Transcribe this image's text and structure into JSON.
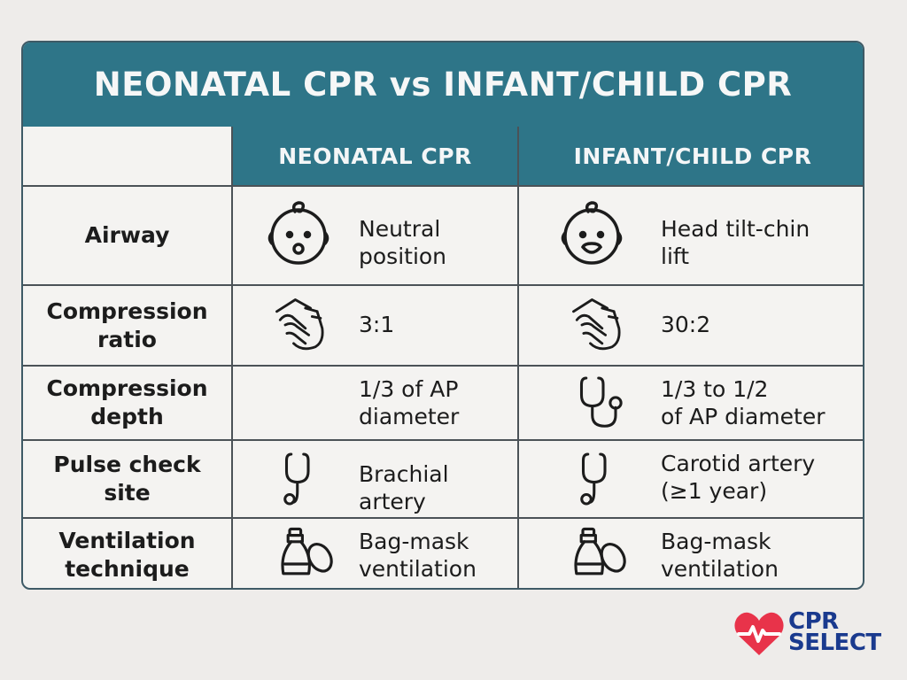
{
  "title": "NEONATAL CPR vs INFANT/CHILD CPR",
  "columns": [
    "NEONATAL CPR",
    "INFANT/CHILD CPR"
  ],
  "rows": [
    {
      "label": "Airway",
      "neonatal": "Neutral\nposition",
      "infant_child": "Head tilt-chin\nlift",
      "neonatal_icon": "baby-face-icon",
      "infant_child_icon": "baby-face-icon"
    },
    {
      "label": "Compression\nratio",
      "neonatal": "3:1",
      "infant_child": "30:2",
      "neonatal_icon": "hands-compression-icon",
      "infant_child_icon": "hands-compression-icon"
    },
    {
      "label": "Compression\ndepth",
      "neonatal": "1/3 of AP\ndiameter",
      "infant_child": "1/3 to 1/2\nof AP diameter",
      "infant_child_icon": "stethoscope-icon"
    },
    {
      "label": "Pulse check\nsite",
      "neonatal": "Brachial\nartery",
      "infant_child": "Carotid artery\n(≥1 year)",
      "neonatal_icon": "stethoscope-icon",
      "infant_child_icon": "stethoscope-icon"
    },
    {
      "label": "Ventilation\ntechnique",
      "neonatal": "Bag-mask\nventilation",
      "infant_child": "Bag-mask\nventilation",
      "neonatal_icon": "bag-mask-icon",
      "infant_child_icon": "bag-mask-icon"
    }
  ],
  "logo": {
    "line1": "CPR",
    "line2": "SELECT",
    "heart_color": "#e8334a",
    "text_color": "#1a3a8e"
  },
  "colors": {
    "header_bg": "#2e7588",
    "border": "#4b5257",
    "background": "#eeecea"
  }
}
